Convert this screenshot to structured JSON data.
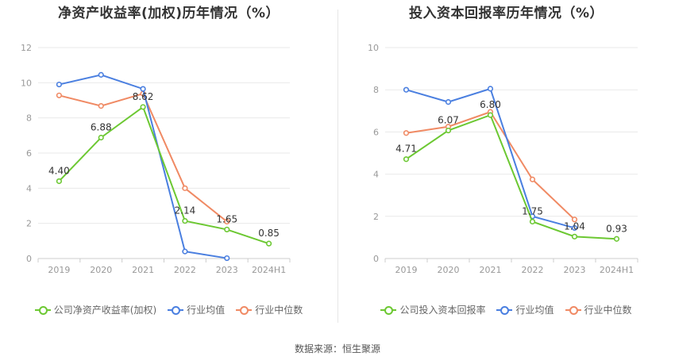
{
  "source_text": "数据来源：恒生聚源",
  "colors": {
    "company": "#6cc832",
    "avg": "#4a7fe0",
    "median": "#f08a64",
    "grid": "#e9e9e9",
    "axis": "#cccccc"
  },
  "chart_data": [
    {
      "type": "line",
      "title": "净资产收益率(加权)历年情况（%）",
      "categories": [
        "2019",
        "2020",
        "2021",
        "2022",
        "2023",
        "2024H1"
      ],
      "ylim": [
        0,
        12
      ],
      "yticks": [
        0,
        2,
        4,
        6,
        8,
        10,
        12
      ],
      "grid": true,
      "legend_position": "bottom",
      "series": [
        {
          "name": "公司净资产收益率(加权)",
          "color_key": "company",
          "values": [
            4.4,
            6.88,
            8.62,
            2.14,
            1.65,
            0.85
          ],
          "labels": [
            "4.40",
            "6.88",
            "8.62",
            "2.14",
            "1.65",
            "0.85"
          ]
        },
        {
          "name": "行业均值",
          "color_key": "avg",
          "values": [
            9.9,
            10.45,
            9.65,
            0.4,
            0.02,
            null
          ]
        },
        {
          "name": "行业中位数",
          "color_key": "median",
          "values": [
            9.28,
            8.68,
            9.38,
            4.0,
            2.1,
            null
          ]
        }
      ]
    },
    {
      "type": "line",
      "title": "投入资本回报率历年情况（%）",
      "categories": [
        "2019",
        "2020",
        "2021",
        "2022",
        "2023",
        "2024H1"
      ],
      "ylim": [
        0,
        10
      ],
      "yticks": [
        0,
        2,
        4,
        6,
        8,
        10
      ],
      "grid": true,
      "legend_position": "bottom",
      "series": [
        {
          "name": "公司投入资本回报率",
          "color_key": "company",
          "values": [
            4.71,
            6.07,
            6.8,
            1.75,
            1.04,
            0.93
          ],
          "labels": [
            "4.71",
            "6.07",
            "6.80",
            "1.75",
            "1.04",
            "0.93"
          ]
        },
        {
          "name": "行业均值",
          "color_key": "avg",
          "values": [
            8.0,
            7.42,
            8.05,
            2.0,
            1.45,
            null
          ]
        },
        {
          "name": "行业中位数",
          "color_key": "median",
          "values": [
            5.95,
            6.25,
            6.95,
            3.75,
            1.85,
            null
          ]
        }
      ]
    }
  ]
}
